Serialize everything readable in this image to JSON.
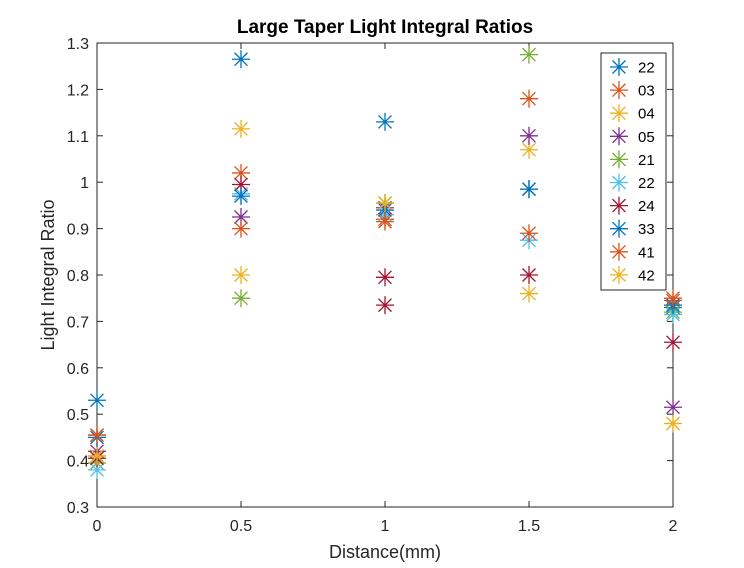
{
  "chart_data": {
    "type": "scatter",
    "title": "Large Taper Light Integral Ratios",
    "xlabel": "Distance(mm)",
    "ylabel": "Light Integral Ratio",
    "xlim": [
      0,
      2
    ],
    "ylim": [
      0.3,
      1.3
    ],
    "xticks": [
      "0",
      "0.5",
      "1",
      "1.5",
      "2"
    ],
    "yticks": [
      "0.3",
      "0.4",
      "0.5",
      "0.6",
      "0.7",
      "0.8",
      "0.9",
      "1",
      "1.1",
      "1.2",
      "1.3"
    ],
    "marker": "asterisk",
    "grid": false,
    "legend_position": "top-right",
    "series": [
      {
        "name": "22",
        "color": "#0072BD",
        "x": [
          0,
          0.5,
          1,
          1.5,
          2
        ],
        "y": [
          0.53,
          1.265,
          1.13,
          0.985,
          0.73
        ]
      },
      {
        "name": "03",
        "color": "#D95319",
        "x": [
          0,
          0.5,
          1,
          1.5,
          2
        ],
        "y": [
          0.455,
          1.02,
          0.92,
          1.18,
          0.745
        ]
      },
      {
        "name": "04",
        "color": "#EDB120",
        "x": [
          0,
          0.5,
          1,
          1.5,
          2
        ],
        "y": [
          0.41,
          1.115,
          0.955,
          1.07,
          0.48
        ]
      },
      {
        "name": "05",
        "color": "#7E2F8E",
        "x": [
          0,
          0.5,
          1,
          1.5,
          2
        ],
        "y": [
          0.42,
          0.925,
          0.945,
          1.1,
          0.515
        ]
      },
      {
        "name": "21",
        "color": "#77AC30",
        "x": [
          0,
          0.5,
          1,
          1.5,
          2
        ],
        "y": [
          0.395,
          0.75,
          0.955,
          1.275,
          0.72
        ]
      },
      {
        "name": "22",
        "color": "#4DBEEE",
        "x": [
          0,
          0.5,
          1,
          1.5,
          2
        ],
        "y": [
          0.38,
          0.975,
          0.93,
          0.875,
          0.715
        ]
      },
      {
        "name": "24",
        "color": "#A2142F",
        "x": [
          0,
          0.5,
          1,
          1.5,
          2
        ],
        "y": [
          0.405,
          0.995,
          0.795,
          0.8,
          0.655
        ]
      },
      {
        "name": "33",
        "color": "#0072BD",
        "x": [
          0,
          0.5,
          1,
          1.5,
          2
        ],
        "y": [
          0.45,
          0.97,
          0.94,
          0.985,
          0.735
        ]
      },
      {
        "name": "41",
        "color": "#D95319",
        "x": [
          0,
          0.5,
          1,
          1.5,
          2
        ],
        "y": [
          0.455,
          0.9,
          0.915,
          0.89,
          0.75
        ]
      },
      {
        "name": "42",
        "color": "#EDB120",
        "x": [
          0,
          0.5,
          1,
          1.5,
          2
        ],
        "y": [
          0.41,
          0.8,
          0.955,
          0.76,
          0.48
        ]
      }
    ],
    "extra_points": [
      {
        "color": "#A2142F",
        "x": 1,
        "y": 0.735
      }
    ]
  }
}
